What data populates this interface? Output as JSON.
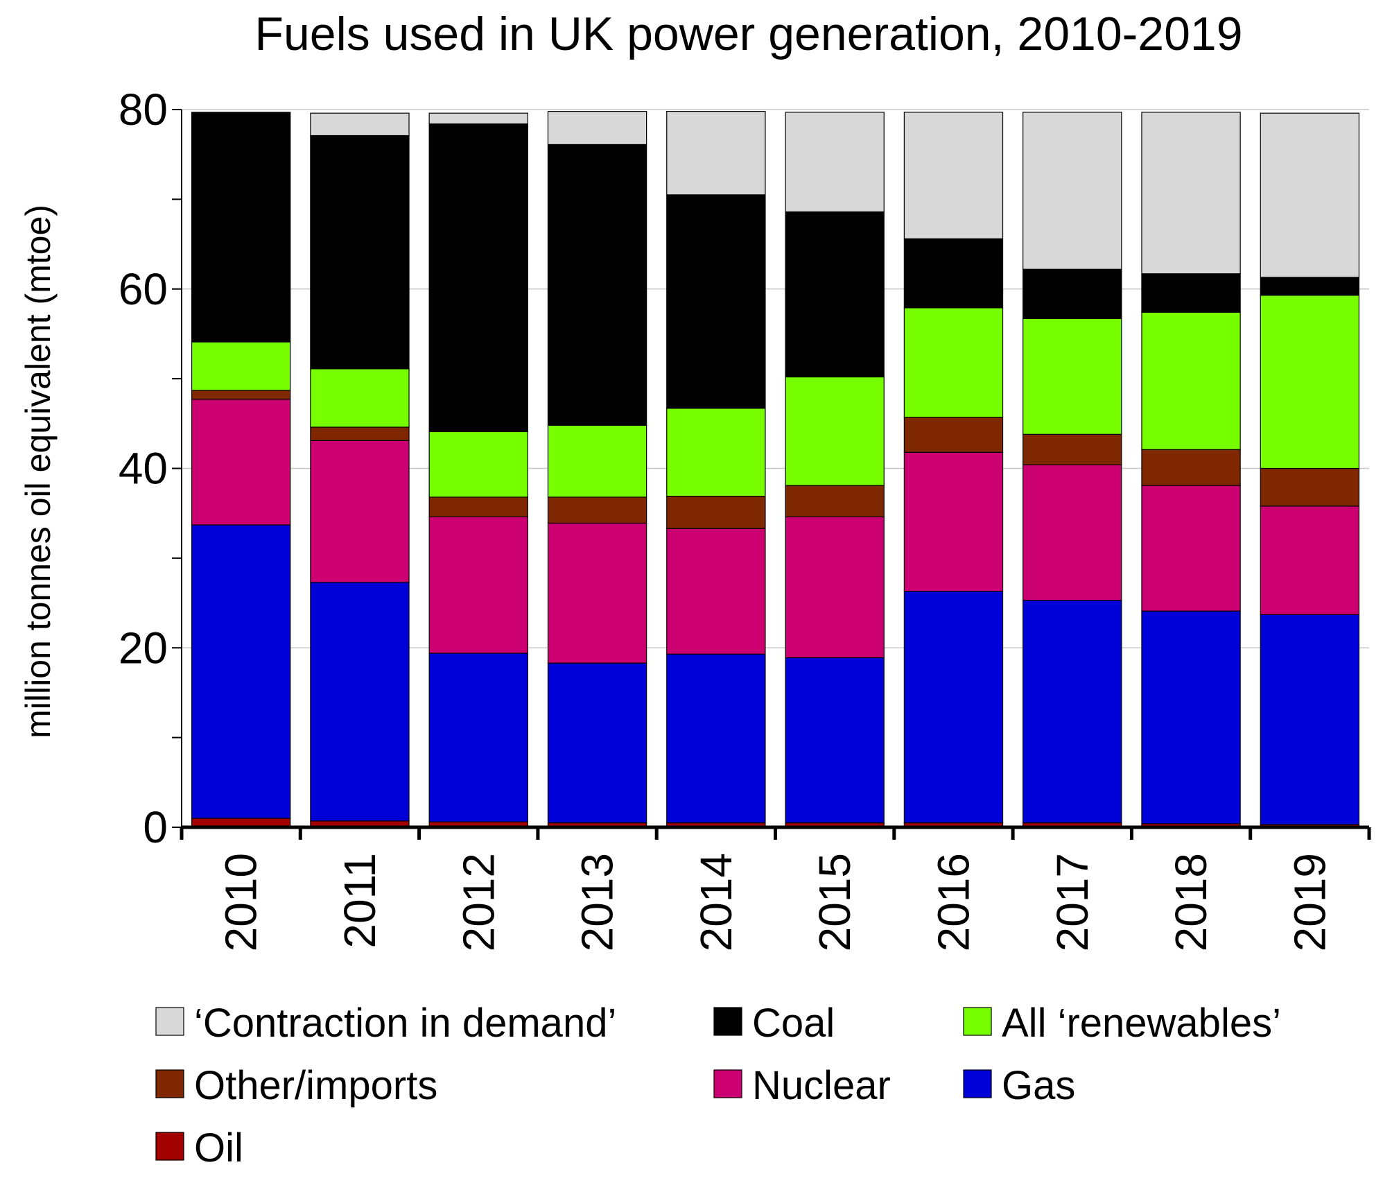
{
  "chart_data": {
    "type": "bar",
    "stacked": true,
    "title": "Fuels used in UK power generation, 2010-2019",
    "xlabel": "",
    "ylabel": "million tonnes oil equivalent (mtoe)",
    "ylim": [
      0,
      80
    ],
    "yticks": [
      "0",
      "20",
      "40",
      "60",
      "80"
    ],
    "grid": true,
    "legend_position": "bottom",
    "categories": [
      "2010",
      "2011",
      "2012",
      "2013",
      "2014",
      "2015",
      "2016",
      "2017",
      "2018",
      "2019"
    ],
    "series": [
      {
        "name": "Oil",
        "color": "#a30000",
        "values": [
          1.0,
          0.7,
          0.6,
          0.5,
          0.5,
          0.5,
          0.5,
          0.5,
          0.4,
          0.3
        ]
      },
      {
        "name": "Gas",
        "color": "#0000d8",
        "values": [
          32.7,
          26.6,
          18.8,
          17.8,
          18.8,
          18.4,
          25.8,
          24.8,
          23.7,
          23.4
        ]
      },
      {
        "name": "Nuclear",
        "color": "#cc0070",
        "values": [
          14.0,
          15.8,
          15.2,
          15.6,
          14.0,
          15.7,
          15.5,
          15.1,
          14.0,
          12.1
        ]
      },
      {
        "name": "Other/imports",
        "color": "#7f2700",
        "values": [
          1.0,
          1.5,
          2.2,
          2.9,
          3.6,
          3.5,
          3.9,
          3.4,
          4.0,
          4.2
        ]
      },
      {
        "name": "All ‘renewables’",
        "color": "#77ff00",
        "values": [
          5.4,
          6.5,
          7.3,
          8.0,
          9.8,
          12.1,
          12.2,
          12.9,
          15.3,
          19.3
        ]
      },
      {
        "name": "Coal",
        "color": "#000000",
        "values": [
          25.6,
          26.0,
          34.3,
          31.3,
          23.8,
          18.4,
          7.7,
          5.5,
          4.3,
          2.0
        ]
      },
      {
        "name": "‘Contraction in demand’",
        "color": "#d8d8d8",
        "values": [
          0.0,
          2.5,
          1.2,
          3.7,
          9.3,
          11.1,
          14.1,
          17.5,
          18.0,
          18.3
        ]
      }
    ]
  }
}
